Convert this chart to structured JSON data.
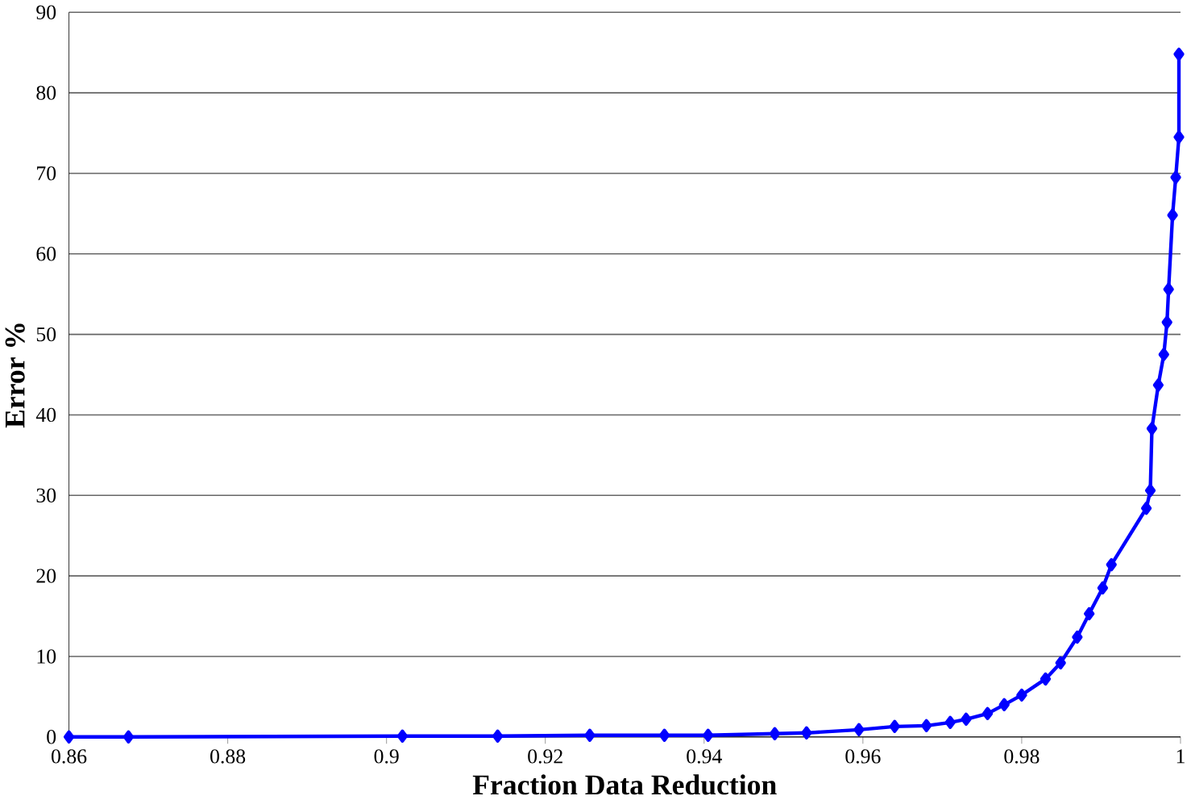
{
  "chart_data": {
    "type": "line",
    "xlabel": "Fraction Data Reduction",
    "ylabel": "Error %",
    "x": [
      0.86,
      0.8675,
      0.902,
      0.914,
      0.9256,
      0.935,
      0.9405,
      0.9489,
      0.9529,
      0.9595,
      0.964,
      0.968,
      0.971,
      0.973,
      0.9757,
      0.9778,
      0.98,
      0.983,
      0.9849,
      0.987,
      0.9885,
      0.9902,
      0.9913,
      0.9957,
      0.9962,
      0.9964,
      0.9972,
      0.9979,
      0.9983,
      0.9985,
      0.999,
      0.9994,
      0.9998,
      0.9998
    ],
    "series": [
      {
        "color": "#0000ff",
        "values": [
          0,
          0,
          0.1,
          0.1,
          0.2,
          0.2,
          0.2,
          0.4,
          0.5,
          0.9,
          1.3,
          1.4,
          1.8,
          2.2,
          2.9,
          4.0,
          5.2,
          7.2,
          9.2,
          12.4,
          15.3,
          18.5,
          21.4,
          28.4,
          30.6,
          38.3,
          43.7,
          47.5,
          51.5,
          55.6,
          64.8,
          69.5,
          74.5,
          84.8
        ]
      }
    ],
    "marker": "diamond",
    "line_style": "solid",
    "grid": "y",
    "xlim": [
      0.86,
      1
    ],
    "xticks": [
      0.86,
      0.88,
      0.9,
      0.92,
      0.94,
      0.96,
      0.98,
      1
    ],
    "ylim": [
      0,
      90
    ],
    "yticks": [
      0,
      10,
      20,
      30,
      40,
      50,
      60,
      70,
      80,
      90
    ]
  }
}
